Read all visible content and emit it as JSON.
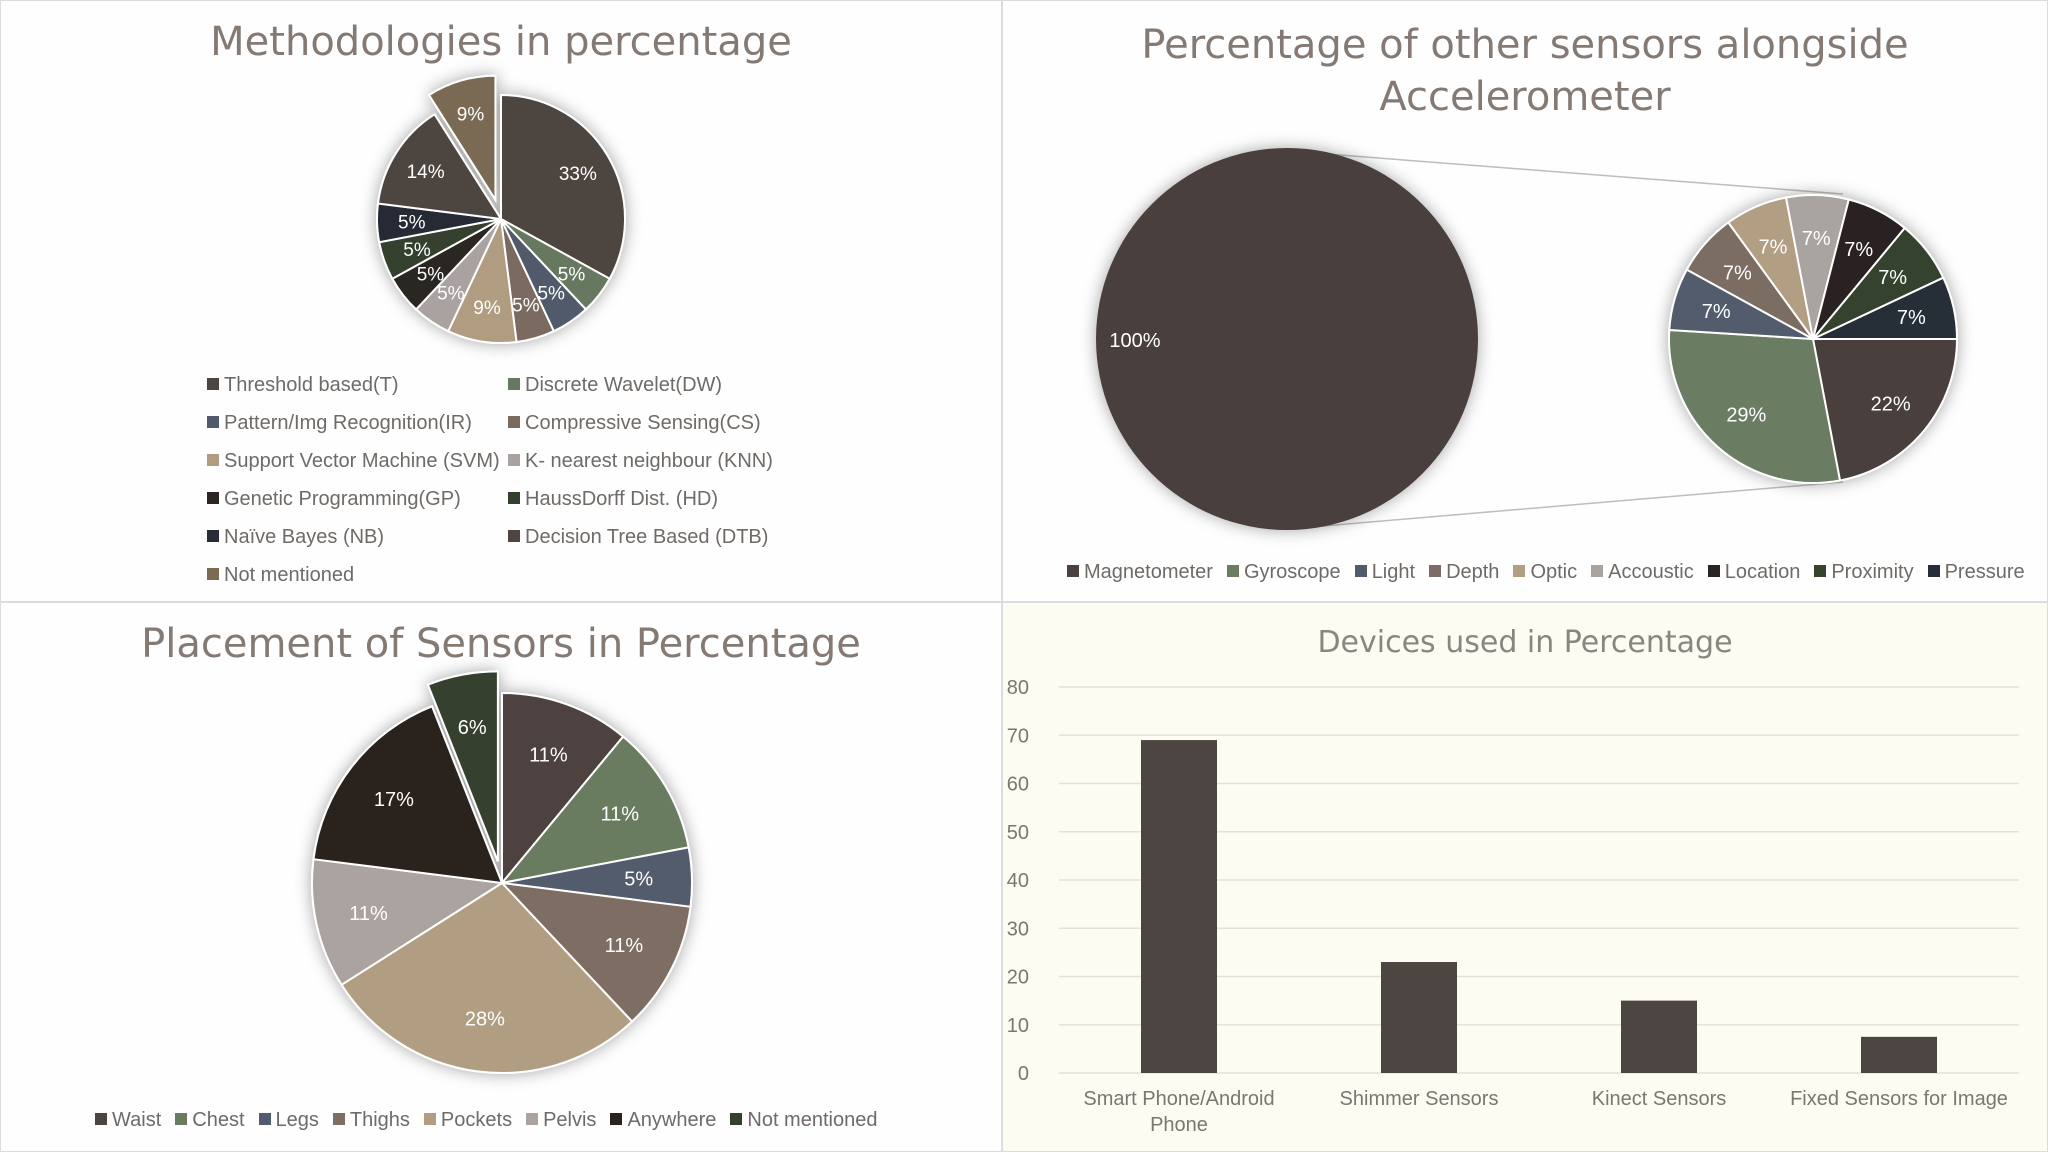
{
  "chart_data": [
    {
      "type": "pie",
      "title": "Methodologies in percentage",
      "series": [
        {
          "labels": [
            "Threshold based(T)",
            "Discrete Wavelet(DW)",
            "Pattern/Img Recognition(IR)",
            "Compressive Sensing(CS)",
            "Support Vector Machine (SVM)",
            "K- nearest neighbour (KNN)",
            "Genetic Programming(GP)",
            "HaussDorff Dist. (HD)",
            "Naïve Bayes (NB)",
            "Decision Tree Based (DTB)",
            "Not mentioned"
          ],
          "values": [
            33,
            5,
            5,
            5,
            9,
            5,
            5,
            5,
            5,
            14,
            9
          ],
          "data_labels": [
            "33%",
            "5%",
            "5%",
            "5%",
            "9%",
            "5%",
            "5%",
            "5%",
            "5%",
            "14%",
            "9%"
          ],
          "colors": [
            "#4e4440",
            "#66785f",
            "#515a6a",
            "#7a6a60",
            "#b09c80",
            "#a9a2a0",
            "#2c2523",
            "#34402e",
            "#272c36",
            "#4e4440",
            "#7a6b52"
          ],
          "exploded_index": 10
        }
      ],
      "legend_position": "bottom"
    },
    {
      "type": "pie",
      "subtype": "pie-of-pie",
      "title": "Percentage of other sensors alongside Accelerometer",
      "series": [
        {
          "main": {
            "label": "100%",
            "value": 100,
            "color": "#4a403d"
          },
          "labels": [
            "Magnetometer",
            "Gyroscope",
            "Light",
            "Depth",
            "Optic",
            "Accoustic",
            "Location",
            "Proximity",
            "Pressure"
          ],
          "values": [
            22,
            29,
            7,
            7,
            7,
            7,
            7,
            7,
            7
          ],
          "data_labels": [
            "22%",
            "29%",
            "7%",
            "7%",
            "7%",
            "7%",
            "7%",
            "7%",
            "7%"
          ],
          "colors": [
            "#4a403d",
            "#6b7c62",
            "#525b6c",
            "#7b6d63",
            "#b29e82",
            "#aaa4a1",
            "#2a2422",
            "#36432f",
            "#282e39"
          ]
        }
      ],
      "legend_position": "bottom"
    },
    {
      "type": "pie",
      "title": "Placement of Sensors in Percentage",
      "series": [
        {
          "labels": [
            "Waist",
            "Chest",
            "Legs",
            "Thighs",
            "Pockets",
            "Pelvis",
            "Anywhere",
            "Not mentioned"
          ],
          "values": [
            11,
            11,
            5,
            11,
            28,
            11,
            17,
            6
          ],
          "data_labels": [
            "11%",
            "11%",
            "5%",
            "11%",
            "28%",
            "11%",
            "17%",
            "6%"
          ],
          "colors": [
            "#4d433f",
            "#6a7b61",
            "#535c6d",
            "#7d6d62",
            "#b19e82",
            "#aaa3a0",
            "#29221f",
            "#35412e"
          ],
          "exploded_index": 7
        }
      ],
      "legend_position": "bottom"
    },
    {
      "type": "bar",
      "title": "Devices used in Percentage",
      "categories": [
        "Smart Phone/Android Phone",
        "Shimmer Sensors",
        "Kinect Sensors",
        "Fixed Sensors for Image"
      ],
      "values": [
        69,
        23,
        15,
        7.5
      ],
      "ylim": [
        0,
        80
      ],
      "yticks": [
        "0",
        "10",
        "20",
        "30",
        "40",
        "50",
        "60",
        "70",
        "80"
      ],
      "bar_color": "#4c4541",
      "grid": true
    }
  ]
}
